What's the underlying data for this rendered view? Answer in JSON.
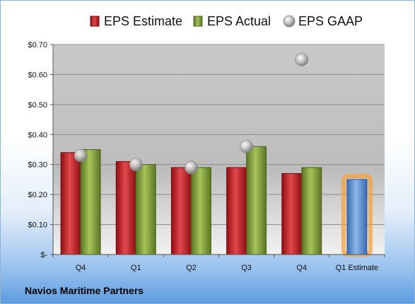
{
  "company": "Navios Maritime Partners",
  "chart_data": {
    "type": "bar",
    "categories": [
      "Q4",
      "Q1",
      "Q2",
      "Q3",
      "Q4",
      "Q1 Estimate"
    ],
    "series": [
      {
        "name": "EPS Estimate",
        "type": "bar",
        "color": "#c0262c",
        "values": [
          0.34,
          0.31,
          0.29,
          0.29,
          0.27,
          null
        ]
      },
      {
        "name": "EPS Actual",
        "type": "bar",
        "color": "#7f9f3a",
        "values": [
          0.35,
          0.3,
          0.29,
          0.36,
          0.29,
          null
        ]
      },
      {
        "name": "EPS GAAP",
        "type": "scatter",
        "color": "#b0b0b0",
        "values": [
          0.33,
          0.3,
          0.29,
          0.36,
          0.65,
          null
        ]
      },
      {
        "name": "Q1 Estimate",
        "type": "bar",
        "color": "#5b8fd4",
        "highlight": "#f5a040",
        "values": [
          null,
          null,
          null,
          null,
          null,
          0.25
        ]
      }
    ],
    "legend_entries": [
      "EPS Estimate",
      "EPS Actual",
      "EPS GAAP"
    ],
    "legend_position": "top",
    "ylim": [
      0,
      0.7
    ],
    "yticks": [
      0,
      0.1,
      0.2,
      0.3,
      0.4,
      0.5,
      0.6,
      0.7
    ],
    "ytick_labels": [
      "$-",
      "$0.10",
      "$0.20",
      "$0.30",
      "$0.40",
      "$0.50",
      "$0.60",
      "$0.70"
    ],
    "grid": true
  }
}
